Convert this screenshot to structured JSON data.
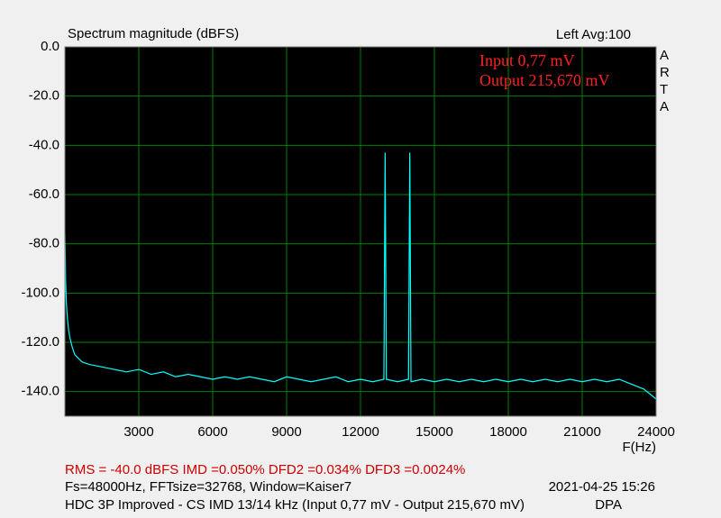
{
  "chart_data": {
    "type": "line",
    "title": "Spectrum magnitude (dBFS)",
    "channel": "Left  Avg:100",
    "annotations": [
      "Input 0,77 mV",
      "Output 215,670 mV"
    ],
    "watermark": "ARTA",
    "x_label": "F(Hz)",
    "footer": [
      "RMS =  -40.0 dBFS   IMD =0.050%  DFD2 =0.034%  DFD3 =0.0024%",
      "Fs=48000Hz, FFTsize=32768, Window=Kaiser7",
      "2021-04-25  15:26",
      "HDC 3P Improved - CS IMD 13/14 kHz (Input 0,77 mV - Output 215,670 mV)",
      "DPA"
    ],
    "x": [
      0,
      30,
      60,
      100,
      150,
      200,
      300,
      400,
      500,
      700,
      1000,
      1500,
      2000,
      2500,
      3000,
      3500,
      4000,
      4500,
      5000,
      5500,
      6000,
      6500,
      7000,
      7500,
      8000,
      8500,
      9000,
      9500,
      10000,
      10500,
      11000,
      11500,
      12000,
      12500,
      12950,
      13000,
      13050,
      13500,
      13950,
      14000,
      14050,
      14500,
      15000,
      15500,
      16000,
      16500,
      17000,
      17500,
      18000,
      18500,
      19000,
      19500,
      20000,
      20500,
      21000,
      21500,
      22000,
      22500,
      23000,
      23500,
      24000
    ],
    "values": [
      -76,
      -95,
      -104,
      -110,
      -115,
      -118,
      -122,
      -125,
      -126,
      -128,
      -129,
      -130,
      -131,
      -132,
      -131,
      -133,
      -132,
      -134,
      -133,
      -134,
      -135,
      -134,
      -135,
      -134,
      -135,
      -136,
      -134,
      -135,
      -136,
      -135,
      -134,
      -136,
      -135,
      -136,
      -135,
      -43,
      -135,
      -136,
      -135,
      -43,
      -136,
      -135,
      -136,
      -135,
      -136,
      -135,
      -136,
      -135,
      -136,
      -135,
      -136,
      -135,
      -136,
      -135,
      -136,
      -135,
      -136,
      -135,
      -137,
      -139,
      -143
    ],
    "color": "#00ffff",
    "background": "#000000",
    "grid_color": "#008000",
    "grid": true,
    "xlim": [
      0,
      24000
    ],
    "xticks": [
      3000,
      6000,
      9000,
      12000,
      15000,
      18000,
      21000,
      24000
    ],
    "ylim": [
      -150,
      0
    ],
    "yticks": [
      {
        "value": 0,
        "label": "0.0"
      },
      {
        "value": -20,
        "label": "-20.0"
      },
      {
        "value": -40,
        "label": "-40.0"
      },
      {
        "value": -60,
        "label": "-60.0"
      },
      {
        "value": -80,
        "label": "-80.0"
      },
      {
        "value": -100,
        "label": "-100.0"
      },
      {
        "value": -120,
        "label": "-120.0"
      },
      {
        "value": -140,
        "label": "-140.0"
      }
    ]
  }
}
